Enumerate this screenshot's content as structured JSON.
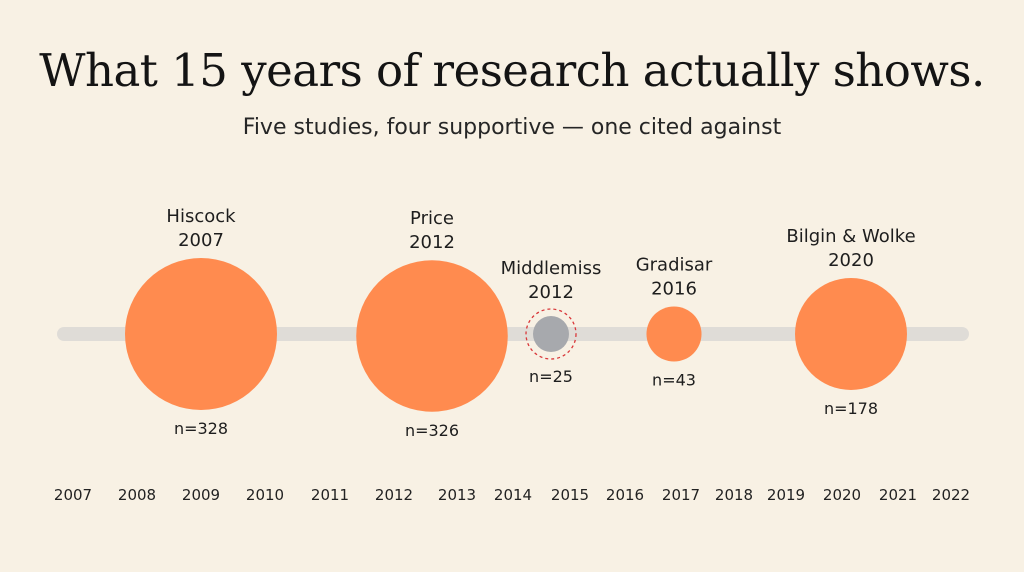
{
  "title": "What 15 years of research actually shows.",
  "subtitle": "Five studies, four supportive — one cited against",
  "colors": {
    "background": "#f8f1e4",
    "supportive": "#ff8b4f",
    "against": "#a7a9ad",
    "against_ring": "#d9383a",
    "timeline": "#dfdcd7"
  },
  "chart_data": {
    "type": "scatter",
    "x_axis_ticks": [
      "2007",
      "2008",
      "2009",
      "2010",
      "2011",
      "2012",
      "2013",
      "2014",
      "2015",
      "2016",
      "2017",
      "2018",
      "2019",
      "2020",
      "2021",
      "2022"
    ],
    "encoding": "bubble size = sample size (n)",
    "studies": [
      {
        "author": "Hiscock",
        "year": "2007",
        "n_label": "n=328",
        "n": 328,
        "stance": "supportive"
      },
      {
        "author": "Price",
        "year": "2012",
        "n_label": "n=326",
        "n": 326,
        "stance": "supportive"
      },
      {
        "author": "Middlemiss",
        "year": "2012",
        "n_label": "n=25",
        "n": 25,
        "stance": "against"
      },
      {
        "author": "Gradisar",
        "year": "2016",
        "n_label": "n=43",
        "n": 43,
        "stance": "supportive"
      },
      {
        "author": "Bilgin & Wolke",
        "year": "2020",
        "n_label": "n=178",
        "n": 178,
        "stance": "supportive"
      }
    ]
  }
}
